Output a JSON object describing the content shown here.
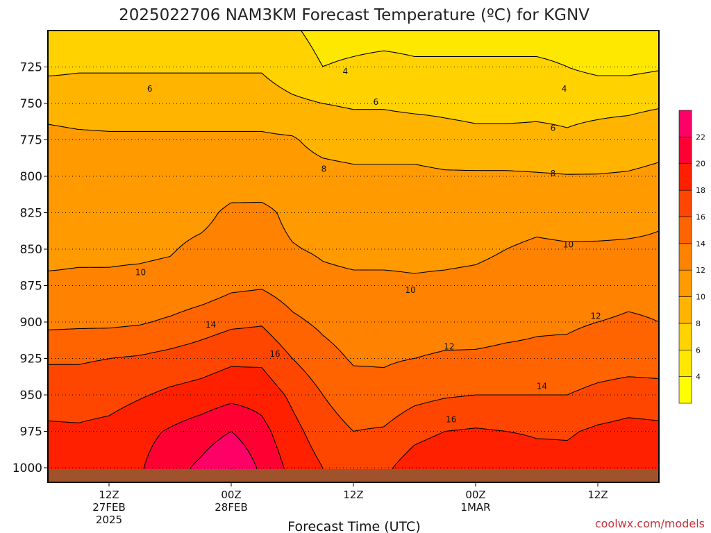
{
  "page": {
    "title": "2025022706 NAM3KM Forecast Temperature (ºC) for KGNV",
    "credit": "coolwx.com/models"
  },
  "chart_data": {
    "type": "heatmap",
    "title": "2025022706 NAM3KM Forecast Temperature (ºC) for KGNV",
    "xlabel": "Forecast Time (UTC)",
    "ylabel": "",
    "y_axis": {
      "unit": "hPa",
      "direction": "inverted",
      "ticks": [
        725,
        750,
        775,
        800,
        825,
        850,
        875,
        900,
        925,
        950,
        975,
        1000
      ],
      "range": [
        700,
        1010
      ]
    },
    "x_axis": {
      "unit": "forecast hour",
      "range": [
        0,
        60
      ],
      "ticks": [
        {
          "hour": 6,
          "label": "12Z",
          "label2": "27FEB",
          "label3": "2025"
        },
        {
          "hour": 18,
          "label": "00Z",
          "label2": "28FEB",
          "label3": ""
        },
        {
          "hour": 30,
          "label": "12Z",
          "label2": "",
          "label3": ""
        },
        {
          "hour": 42,
          "label": "00Z",
          "label2": "1MAR",
          "label3": ""
        },
        {
          "hour": 54,
          "label": "12Z",
          "label2": "",
          "label3": ""
        }
      ]
    },
    "grid": "dotted horizontal at pressure ticks",
    "surface_pressure": 1010,
    "levels": [
      2,
      4,
      6,
      8,
      10,
      12,
      14,
      16,
      18,
      20,
      22,
      24
    ],
    "colorbar": {
      "labels": [
        4,
        6,
        8,
        10,
        12,
        14,
        16,
        18,
        20,
        22
      ],
      "colors": [
        "#ffff00",
        "#ffe800",
        "#ffd200",
        "#ffb400",
        "#ff9a00",
        "#ff8200",
        "#ff6400",
        "#ff4600",
        "#ff2000",
        "#ff0033",
        "#ff0066"
      ]
    },
    "x_hours": [
      0,
      3,
      6,
      9,
      12,
      15,
      18,
      21,
      24,
      27,
      30,
      33,
      36,
      39,
      42,
      45,
      48,
      51,
      54,
      57,
      60
    ],
    "y_levels": [
      700,
      725,
      750,
      775,
      800,
      825,
      850,
      875,
      900,
      925,
      950,
      975,
      1000,
      1010
    ],
    "temperature": [
      [
        4.5,
        4.5,
        4.5,
        4.5,
        4.5,
        4.5,
        4.5,
        4.5,
        4.2,
        3.5,
        3.5,
        3.5,
        3.5,
        3.5,
        3.5,
        3.5,
        3.5,
        3.5,
        3.5,
        3.5,
        3.5
      ],
      [
        5.6,
        5.8,
        5.8,
        5.8,
        5.8,
        5.8,
        5.8,
        5.8,
        4.8,
        4.0,
        4.2,
        4.4,
        4.2,
        4.2,
        4.2,
        4.2,
        4.2,
        4.0,
        3.5,
        3.5,
        3.8
      ],
      [
        7.2,
        7.0,
        7.0,
        7.0,
        7.0,
        7.0,
        7.0,
        7.0,
        6.4,
        6.0,
        5.8,
        5.8,
        5.6,
        5.6,
        5.5,
        5.5,
        5.6,
        5.6,
        5.6,
        5.6,
        5.8
      ],
      [
        8.6,
        8.4,
        8.3,
        8.3,
        8.3,
        8.3,
        8.3,
        8.3,
        8.2,
        7.3,
        7.0,
        7.0,
        7.0,
        6.6,
        6.4,
        6.4,
        6.4,
        6.2,
        6.5,
        6.8,
        7.2
      ],
      [
        9.0,
        9.0,
        9.0,
        9.0,
        9.0,
        9.0,
        9.2,
        9.0,
        9.0,
        8.7,
        8.5,
        8.5,
        8.5,
        8.3,
        8.3,
        8.3,
        8.2,
        8.1,
        8.1,
        8.2,
        8.5
      ],
      [
        9.2,
        9.2,
        9.3,
        9.4,
        9.5,
        9.6,
        10.3,
        10.4,
        9.6,
        9.3,
        9.0,
        9.0,
        9.0,
        9.0,
        9.0,
        9.2,
        9.4,
        9.2,
        9.3,
        9.5,
        9.8
      ],
      [
        9.7,
        9.8,
        9.8,
        9.8,
        9.9,
        10.3,
        10.6,
        10.6,
        10.1,
        9.8,
        9.6,
        9.6,
        9.6,
        9.6,
        9.7,
        10.0,
        10.3,
        10.2,
        10.2,
        10.2,
        10.2
      ],
      [
        10.2,
        10.2,
        10.2,
        10.3,
        10.4,
        10.8,
        11.6,
        11.8,
        11.0,
        10.4,
        10.3,
        10.3,
        10.2,
        10.3,
        10.4,
        10.6,
        10.8,
        11.0,
        11.2,
        11.5,
        11.5
      ],
      [
        11.5,
        11.6,
        11.6,
        11.8,
        12.3,
        13.0,
        13.6,
        13.8,
        12.4,
        11.6,
        11.0,
        11.0,
        11.2,
        11.3,
        11.4,
        11.6,
        11.8,
        11.8,
        12.0,
        12.2,
        12.0
      ],
      [
        13.8,
        13.8,
        14.0,
        14.2,
        14.6,
        15.0,
        15.6,
        15.6,
        14.0,
        12.7,
        11.8,
        11.8,
        12.0,
        12.2,
        12.2,
        12.3,
        12.3,
        12.4,
        12.8,
        13.0,
        13.0
      ],
      [
        15.0,
        15.0,
        15.2,
        15.8,
        16.4,
        16.8,
        17.4,
        17.2,
        15.6,
        14.0,
        12.8,
        12.6,
        13.4,
        13.8,
        14.0,
        14.0,
        14.0,
        14.0,
        14.6,
        15.0,
        14.8
      ],
      [
        16.4,
        16.3,
        16.6,
        17.4,
        18.2,
        19.0,
        20.0,
        18.6,
        16.6,
        15.0,
        14.0,
        14.2,
        15.4,
        16.0,
        16.2,
        16.0,
        15.8,
        15.8,
        16.3,
        16.6,
        16.5
      ],
      [
        17.0,
        17.0,
        17.2,
        17.8,
        19.2,
        20.4,
        22.0,
        19.6,
        17.4,
        16.0,
        15.2,
        15.6,
        17.0,
        17.6,
        17.8,
        17.4,
        16.8,
        16.6,
        17.0,
        17.4,
        17.6
      ],
      [
        17.0,
        17.0,
        17.2,
        17.8,
        19.2,
        20.4,
        22.0,
        19.6,
        17.4,
        16.0,
        15.2,
        15.6,
        17.0,
        17.6,
        17.8,
        17.4,
        16.8,
        16.6,
        17.0,
        17.4,
        17.6
      ]
    ],
    "contour_labels": [
      {
        "value": 4,
        "hour": 29.2,
        "pressure": 728
      },
      {
        "value": 4,
        "hour": 50.7,
        "pressure": 740
      },
      {
        "value": 6,
        "hour": 10.0,
        "pressure": 740
      },
      {
        "value": 6,
        "hour": 32.2,
        "pressure": 749
      },
      {
        "value": 6,
        "hour": 49.6,
        "pressure": 767
      },
      {
        "value": 8,
        "hour": 27.1,
        "pressure": 795
      },
      {
        "value": 8,
        "hour": 49.6,
        "pressure": 798
      },
      {
        "value": 10,
        "hour": 9.1,
        "pressure": 866
      },
      {
        "value": 10,
        "hour": 35.6,
        "pressure": 878
      },
      {
        "value": 10,
        "hour": 51.1,
        "pressure": 847
      },
      {
        "value": 12,
        "hour": 39.4,
        "pressure": 917
      },
      {
        "value": 12,
        "hour": 53.8,
        "pressure": 896
      },
      {
        "value": 14,
        "hour": 16.0,
        "pressure": 902
      },
      {
        "value": 14,
        "hour": 48.5,
        "pressure": 944
      },
      {
        "value": 16,
        "hour": 22.3,
        "pressure": 922
      },
      {
        "value": 16,
        "hour": 39.6,
        "pressure": 967
      }
    ]
  }
}
